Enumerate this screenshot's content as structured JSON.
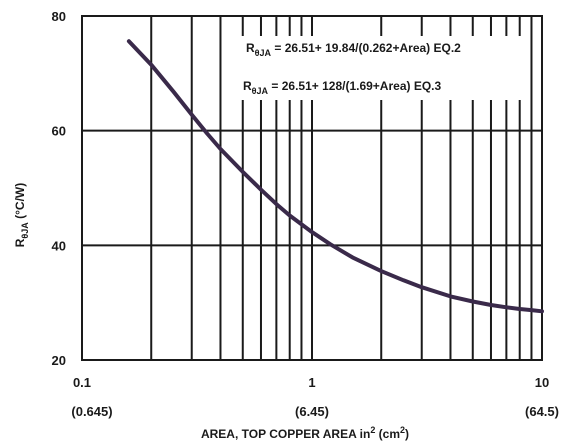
{
  "chart_data": {
    "type": "line",
    "title": "",
    "xlabel": "AREA, TOP COPPER AREA in2 (cm2)",
    "ylabel": "RθJA (°C/W)",
    "x_scale": "log",
    "xlim": [
      0.1,
      10
    ],
    "ylim": [
      20,
      80
    ],
    "grid": true,
    "x_tick_labels": [
      "0.1",
      "1",
      "10"
    ],
    "x_tick_sublabels": [
      "(0.645)",
      "(6.45)",
      "(64.5)"
    ],
    "y_tick_labels": [
      "20",
      "40",
      "60",
      "80"
    ],
    "series": [
      {
        "color": "#3a2a4a",
        "x": [
          0.16,
          0.2,
          0.25,
          0.3,
          0.35,
          0.4,
          0.5,
          0.6,
          0.7,
          0.8,
          1.0,
          1.2,
          1.5,
          2.0,
          2.5,
          3.0,
          4.0,
          5.0,
          6.0,
          7.0,
          8.0,
          9.0,
          10.0
        ],
        "y": [
          75.6,
          71.5,
          66.8,
          62.8,
          59.5,
          56.8,
          52.8,
          49.7,
          47.2,
          45.2,
          42.3,
          40.2,
          37.9,
          35.5,
          33.9,
          32.7,
          31.1,
          30.2,
          29.6,
          29.2,
          28.9,
          28.7,
          28.5
        ]
      }
    ],
    "annotations": [
      {
        "lead": "R",
        "sub": "θJA",
        "text": " = 26.51+ 19.84/(0.262+Area) EQ.2"
      },
      {
        "lead": "R",
        "sub": "θJA",
        "text": " = 26.51+ 128/(1.69+Area) EQ.3"
      }
    ]
  }
}
